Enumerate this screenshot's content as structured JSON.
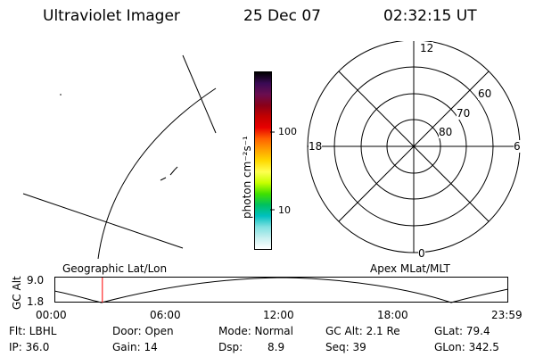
{
  "header": {
    "instrument": "Ultraviolet Imager",
    "date": "25 Dec 07",
    "time": "02:32:15 UT"
  },
  "colorbar": {
    "label": "photon cm⁻²s⁻¹",
    "scale": "log",
    "tick_labels": [
      "100",
      "10"
    ],
    "colors": [
      "#000000",
      "#3a0a55",
      "#6a0d50",
      "#8a0018",
      "#c20000",
      "#e80000",
      "#ff6000",
      "#ff9f00",
      "#ffd800",
      "#ffff50",
      "#c8ff00",
      "#40e000",
      "#00c060",
      "#00c0c0",
      "#80e0e0",
      "#c8f0f0",
      "#ffffff"
    ]
  },
  "polar": {
    "ring_labels": [
      "60",
      "70",
      "80"
    ],
    "clock_labels": {
      "top": "12",
      "bottom": "0",
      "left": "18",
      "right": "6"
    }
  },
  "timeline": {
    "left_label": "Geographic Lat/Lon",
    "right_label": "Apex MLat/MLT",
    "y_axis_label": "GC Alt",
    "y_ticks": [
      "9.0",
      "1.8"
    ],
    "x_ticks": [
      "00:00",
      "06:00",
      "12:00",
      "18:00",
      "23:59"
    ],
    "current_time_marker": "02:32",
    "marker_color": "#ff0000"
  },
  "info": {
    "filter": "Flt: LBHL",
    "door": "Door: Open",
    "mode": "Mode: Normal",
    "gc_alt": "GC Alt: 2.1 Re",
    "glat": "GLat: 79.4",
    "ip": "IP: 36.0",
    "gain": "Gain: 14",
    "dsp_label": "Dsp:",
    "dsp_value": "8.9",
    "seq": "Seq: 39",
    "glon": "GLon: 342.5"
  }
}
